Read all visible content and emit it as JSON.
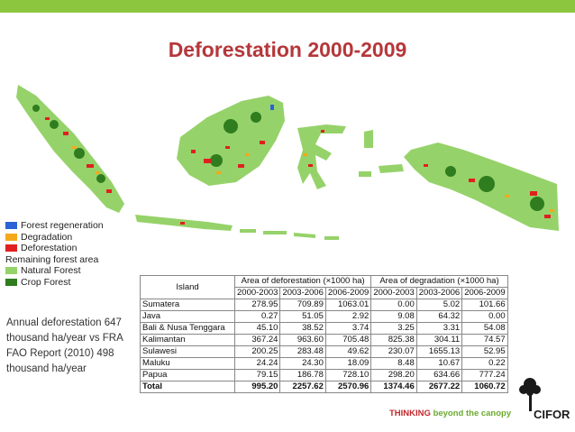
{
  "title": "Deforestation 2000-2009",
  "legend": {
    "items": [
      {
        "label": "Forest regeneration",
        "color": "#2b63d6"
      },
      {
        "label": "Degradation",
        "color": "#f4a81c"
      },
      {
        "label": "Deforestation",
        "color": "#e02020"
      }
    ],
    "subheading": "Remaining forest area",
    "forest_items": [
      {
        "label": "Natural Forest",
        "color": "#96d26a"
      },
      {
        "label": "Crop Forest",
        "color": "#2f7d1e"
      }
    ]
  },
  "note": "Annual deforestation 647 thousand ha/year vs FRA FAO Report (2010) 498 thousand ha/year",
  "table": {
    "island_header": "Island",
    "group_headers": [
      "Area of deforestation (×1000 ha)",
      "Area of degradation (×1000 ha)"
    ],
    "periods": [
      "2000-2003",
      "2003-2006",
      "2006-2009",
      "2000-2003",
      "2003-2006",
      "2006-2009"
    ],
    "rows": [
      {
        "island": "Sumatera",
        "values": [
          "278.95",
          "709.89",
          "1063.01",
          "0.00",
          "5.02",
          "101.66"
        ]
      },
      {
        "island": "Java",
        "values": [
          "0.27",
          "51.05",
          "2.92",
          "9.08",
          "64.32",
          "0.00"
        ]
      },
      {
        "island": "Bali & Nusa Tenggara",
        "values": [
          "45.10",
          "38.52",
          "3.74",
          "3.25",
          "3.31",
          "54.08"
        ]
      },
      {
        "island": "Kalimantan",
        "values": [
          "367.24",
          "963.60",
          "705.48",
          "825.38",
          "304.11",
          "74.57"
        ]
      },
      {
        "island": "Sulawesi",
        "values": [
          "200.25",
          "283.48",
          "49.62",
          "230.07",
          "1655.13",
          "52.95"
        ]
      },
      {
        "island": "Maluku",
        "values": [
          "24.24",
          "24.30",
          "18.09",
          "8.48",
          "10.67",
          "0.22"
        ]
      },
      {
        "island": "Papua",
        "values": [
          "79.15",
          "186.78",
          "728.10",
          "298.20",
          "634.66",
          "777.24"
        ]
      }
    ],
    "total": {
      "island": "Total",
      "values": [
        "995.20",
        "2257.62",
        "2570.96",
        "1374.46",
        "2677.22",
        "1060.72"
      ]
    }
  },
  "footer": {
    "bold": "THINKING",
    "rest": "beyond the canopy"
  },
  "logo_text": "CIFOR"
}
